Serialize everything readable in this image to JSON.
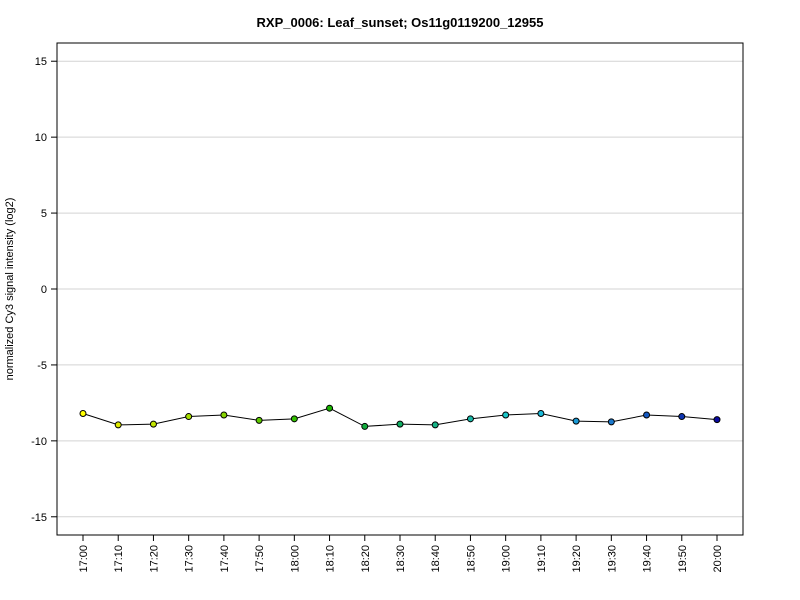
{
  "chart_data": {
    "type": "line",
    "title": "RXP_0006: Leaf_sunset; Os11g0119200_12955",
    "xlabel": "",
    "ylabel": "normalized Cy3 signal intensity (log2)",
    "ylim": [
      -16.2,
      16.2
    ],
    "yticks": [
      -15,
      -10,
      -5,
      0,
      5,
      10,
      15
    ],
    "ytick_labels": [
      "-15",
      "-10",
      "-5",
      "0",
      "5",
      "10",
      "15"
    ],
    "grid": "horizontal",
    "categories": [
      "17:00",
      "17:10",
      "17:20",
      "17:30",
      "17:40",
      "17:50",
      "18:00",
      "18:10",
      "18:20",
      "18:30",
      "18:40",
      "18:50",
      "19:00",
      "19:10",
      "19:20",
      "19:30",
      "19:40",
      "19:50",
      "20:00"
    ],
    "values": [
      -8.2,
      -8.95,
      -8.9,
      -8.4,
      -8.3,
      -8.65,
      -8.55,
      -7.85,
      -9.05,
      -8.9,
      -8.95,
      -8.55,
      -8.3,
      -8.2,
      -8.7,
      -8.75,
      -8.3,
      -8.4,
      -8.6
    ],
    "point_colors": [
      "#ffff00",
      "#dfeb00",
      "#c3e600",
      "#a6de00",
      "#86d400",
      "#5fca00",
      "#33c000",
      "#19b400",
      "#12ab3c",
      "#0fae63",
      "#17b386",
      "#1ab8a8",
      "#1bc6c8",
      "#1ab9d8",
      "#1a9ad6",
      "#1a78cc",
      "#1458c0",
      "#0e34b0",
      "#0a0aa0"
    ],
    "line_color": "#000000"
  }
}
